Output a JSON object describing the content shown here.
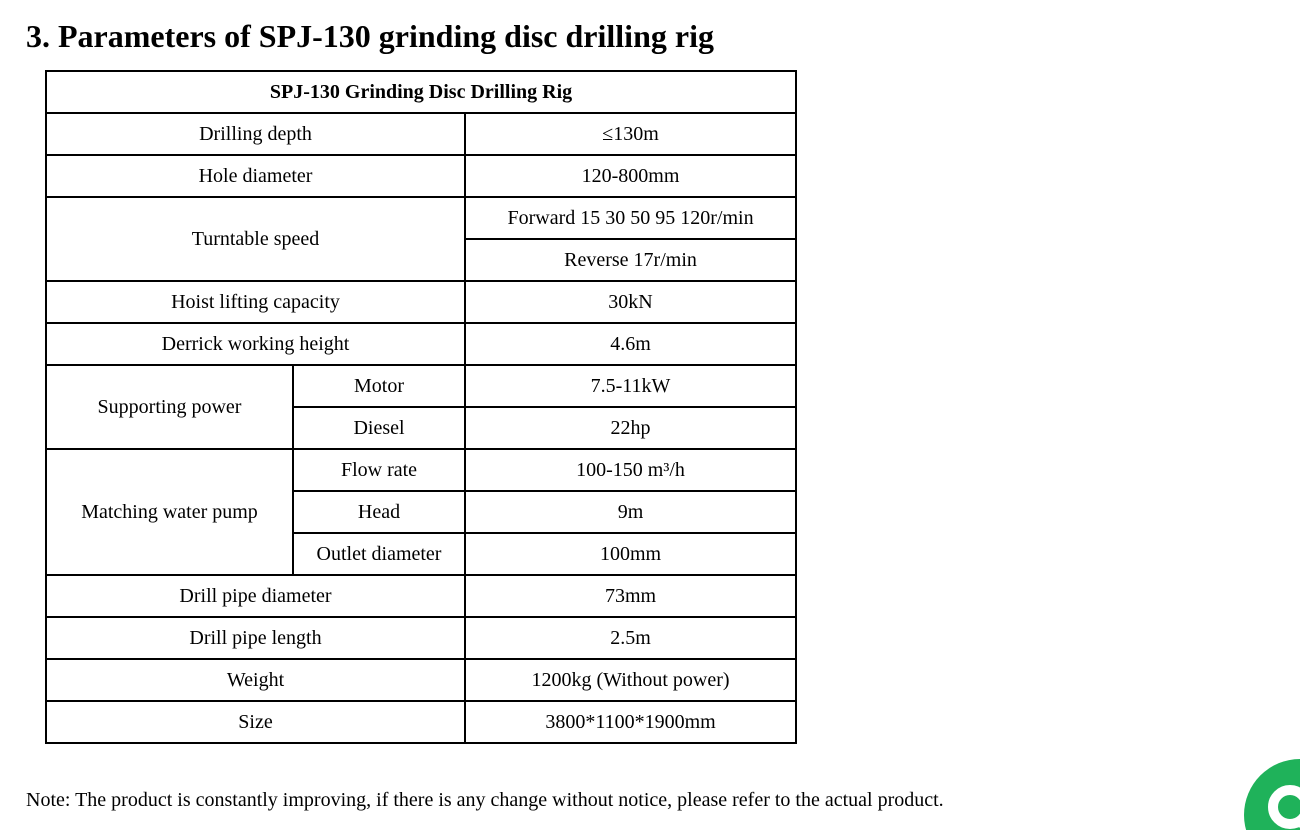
{
  "heading": "3. Parameters of SPJ-130 grinding disc drilling rig",
  "table": {
    "title": "SPJ-130 Grinding Disc Drilling Rig",
    "drilling_depth": {
      "label": "Drilling depth",
      "value": "≤130m"
    },
    "hole_diameter": {
      "label": "Hole diameter",
      "value": "120-800mm"
    },
    "turntable_speed": {
      "label": "Turntable speed",
      "forward": "Forward 15 30 50 95 120r/min",
      "reverse": "Reverse 17r/min"
    },
    "hoist_lifting_capacity": {
      "label": "Hoist lifting capacity",
      "value": "30kN"
    },
    "derrick_working_height": {
      "label": "Derrick working height",
      "value": "4.6m"
    },
    "supporting_power": {
      "label": "Supporting power",
      "motor": {
        "label": "Motor",
        "value": "7.5-11kW"
      },
      "diesel": {
        "label": "Diesel",
        "value": "22hp"
      }
    },
    "matching_water_pump": {
      "label": "Matching water pump",
      "flow_rate": {
        "label": "Flow rate",
        "value": "100-150 m³/h"
      },
      "head": {
        "label": "Head",
        "value": "9m"
      },
      "outlet_diameter": {
        "label": "Outlet diameter",
        "value": "100mm"
      }
    },
    "drill_pipe_diameter": {
      "label": "Drill pipe diameter",
      "value": "73mm"
    },
    "drill_pipe_length": {
      "label": "Drill pipe length",
      "value": "2.5m"
    },
    "weight": {
      "label": "Weight",
      "value": "1200kg (Without power)"
    },
    "size": {
      "label": "Size",
      "value": "3800*1100*1900mm"
    }
  },
  "note": "Note: The product is constantly improving, if there is any change without notice, please refer to the actual product.",
  "chat_widget": {
    "icon": "chat-icon",
    "color": "#1fb25a"
  }
}
